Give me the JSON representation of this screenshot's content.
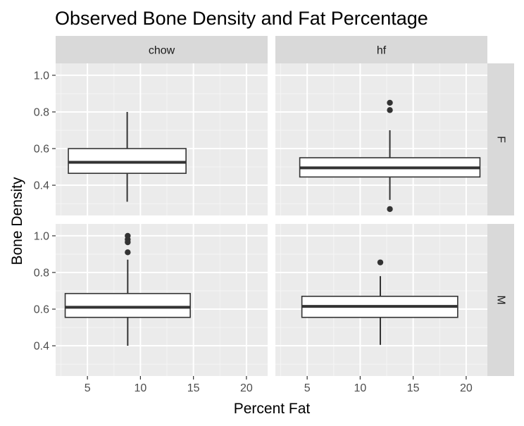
{
  "chart_data": {
    "type": "boxplot",
    "title": "Observed Bone Density and Fat Percentage",
    "xlabel": "Percent Fat",
    "ylabel": "Bone Density",
    "xlim": [
      2,
      22
    ],
    "ylim": [
      0.235,
      1.065
    ],
    "xticks": [
      5,
      10,
      15,
      20
    ],
    "yticks": [
      0.4,
      0.6,
      0.8,
      1.0
    ],
    "ytick_labels": [
      "0.4",
      "0.6",
      "0.8",
      "1.0"
    ],
    "col_facets": [
      "chow",
      "hf"
    ],
    "row_facets": [
      "F",
      "M"
    ],
    "grid": true,
    "panels": [
      {
        "col": "chow",
        "row": "F",
        "x_min": 3.2,
        "x_max": 14.3,
        "x_center": 8.75,
        "whisker_low": 0.31,
        "q1": 0.465,
        "median": 0.525,
        "q3": 0.6,
        "whisker_high": 0.8,
        "outliers": []
      },
      {
        "col": "hf",
        "row": "F",
        "x_min": 4.3,
        "x_max": 21.3,
        "x_center": 12.8,
        "whisker_low": 0.32,
        "q1": 0.445,
        "median": 0.495,
        "q3": 0.55,
        "whisker_high": 0.7,
        "outliers": [
          0.85,
          0.81,
          0.27
        ]
      },
      {
        "col": "chow",
        "row": "M",
        "x_min": 2.9,
        "x_max": 14.7,
        "x_center": 8.8,
        "whisker_low": 0.4,
        "q1": 0.555,
        "median": 0.61,
        "q3": 0.685,
        "whisker_high": 0.87,
        "outliers": [
          1.0,
          0.98,
          0.965,
          0.91
        ]
      },
      {
        "col": "hf",
        "row": "M",
        "x_min": 4.5,
        "x_max": 19.2,
        "x_center": 11.9,
        "whisker_low": 0.405,
        "q1": 0.555,
        "median": 0.615,
        "q3": 0.67,
        "whisker_high": 0.78,
        "outliers": [
          0.855
        ]
      }
    ]
  }
}
